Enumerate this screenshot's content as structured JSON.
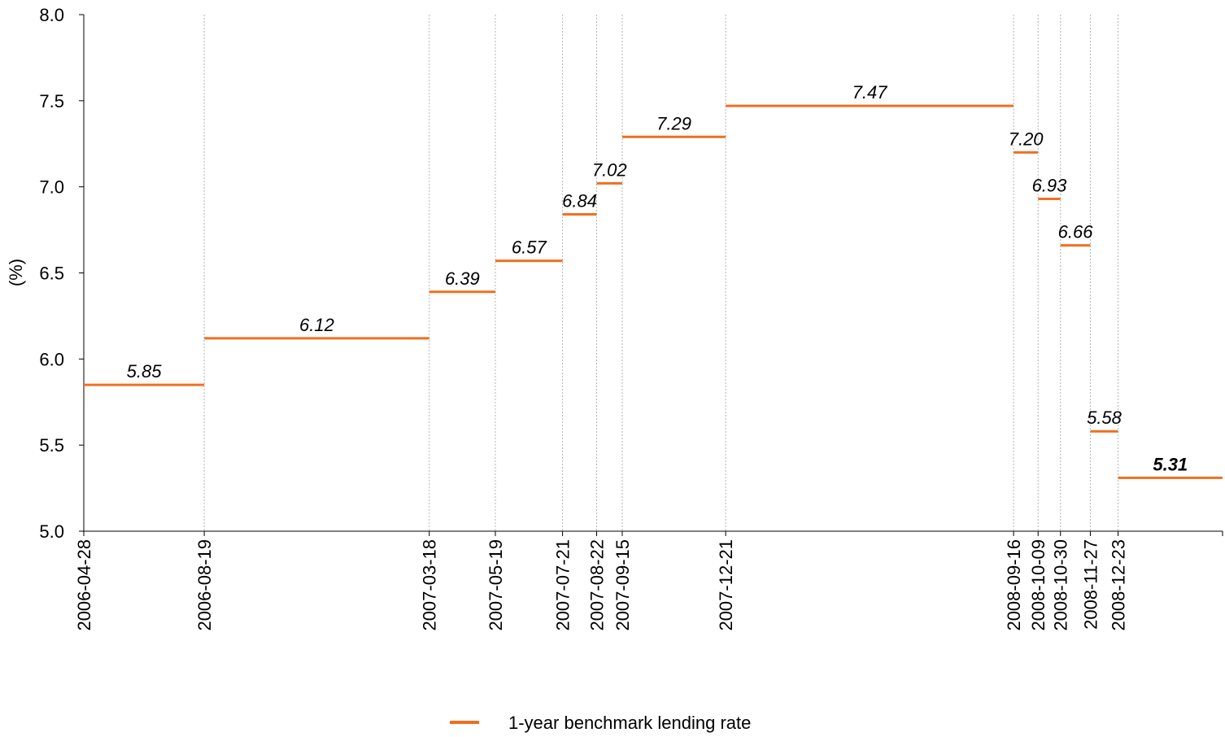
{
  "chart_data": {
    "type": "line",
    "subtype": "step",
    "title": "",
    "xlabel": "",
    "ylabel": "(%)",
    "ylim": [
      5.0,
      8.0
    ],
    "yticks": [
      "5.0",
      "5.5",
      "6.0",
      "6.5",
      "7.0",
      "7.5",
      "8.0"
    ],
    "end_date": "2009-03-31",
    "grid": "vertical-dotted",
    "legend_position": "bottom-center",
    "series": [
      {
        "name": "1-year benchmark lending rate",
        "color": "#f07020",
        "steps": [
          {
            "start": "2006-04-28",
            "value": 5.85,
            "label": "5.85"
          },
          {
            "start": "2006-08-19",
            "value": 6.12,
            "label": "6.12"
          },
          {
            "start": "2007-03-18",
            "value": 6.39,
            "label": "6.39"
          },
          {
            "start": "2007-05-19",
            "value": 6.57,
            "label": "6.57"
          },
          {
            "start": "2007-07-21",
            "value": 6.84,
            "label": "6.84"
          },
          {
            "start": "2007-08-22",
            "value": 7.02,
            "label": "7.02"
          },
          {
            "start": "2007-09-15",
            "value": 7.29,
            "label": "7.29"
          },
          {
            "start": "2007-12-21",
            "value": 7.47,
            "label": "7.47"
          },
          {
            "start": "2008-09-16",
            "value": 7.2,
            "label": "7.20"
          },
          {
            "start": "2008-10-09",
            "value": 6.93,
            "label": "6.93"
          },
          {
            "start": "2008-10-30",
            "value": 6.66,
            "label": "6.66"
          },
          {
            "start": "2008-11-27",
            "value": 5.58,
            "label": "5.58"
          },
          {
            "start": "2008-12-23",
            "value": 5.31,
            "label": "5.31",
            "bold": true
          }
        ]
      }
    ]
  }
}
